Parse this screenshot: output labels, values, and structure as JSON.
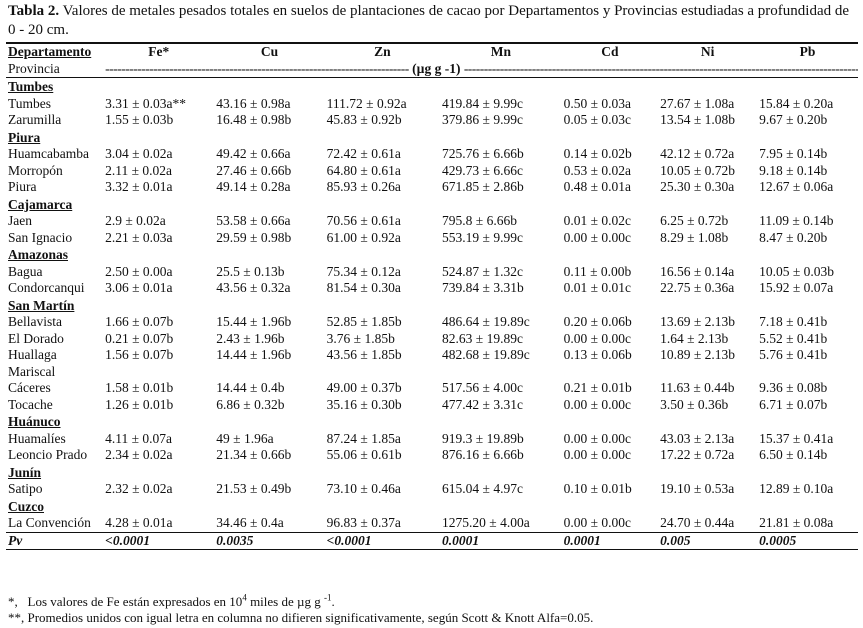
{
  "caption": {
    "label": "Tabla 2.",
    "text": "Valores de metales pesados totales en suelos de plantaciones de cacao por Departamentos y Provincias estudiadas a profundidad de 0 - 20 cm."
  },
  "header": {
    "departamento": "Departamento",
    "provincia": "Provincia",
    "columns": [
      "Fe*",
      "Cu",
      "Zn",
      "Mn",
      "Cd",
      "Ni",
      "Pb"
    ],
    "units_left": "----------------------------------------------------------------------------",
    "units": "(µg g -1)",
    "units_right": "-------------------------------------------------------------------------------------------------------------------------"
  },
  "rows": [
    {
      "dept": "Tumbes"
    },
    {
      "prov": "Tumbes",
      "v": [
        "3.31 ± 0.03a**",
        "43.16 ± 0.98a",
        "111.72 ± 0.92a",
        "419.84 ± 9.99c",
        "0.50 ± 0.03a",
        "27.67 ± 1.08a",
        "15.84 ± 0.20a"
      ]
    },
    {
      "prov": "Zarumilla",
      "v": [
        "1.55 ± 0.03b",
        "16.48 ± 0.98b",
        "45.83 ± 0.92b",
        "379.86 ± 9.99c",
        "0.05 ± 0.03c",
        "13.54 ± 1.08b",
        "9.67 ± 0.20b"
      ]
    },
    {
      "dept": "Piura"
    },
    {
      "prov": "Huamcabamba",
      "v": [
        "3.04 ± 0.02a",
        "49.42 ± 0.66a",
        "72.42 ± 0.61a",
        "725.76 ± 6.66b",
        "0.14 ± 0.02b",
        "42.12 ± 0.72a",
        "7.95 ± 0.14b"
      ]
    },
    {
      "prov": "Morropón",
      "v": [
        "2.11 ± 0.02a",
        "27.46 ± 0.66b",
        "64.80 ± 0.61a",
        "429.73 ± 6.66c",
        "0.53 ± 0.02a",
        "10.05 ± 0.72b",
        "9.18 ± 0.14b"
      ]
    },
    {
      "prov": "Piura",
      "v": [
        "3.32 ± 0.01a",
        "49.14 ± 0.28a",
        "85.93 ± 0.26a",
        "671.85 ± 2.86b",
        "0.48 ± 0.01a",
        "25.30 ± 0.30a",
        "12.67 ± 0.06a"
      ]
    },
    {
      "dept": "Cajamarca"
    },
    {
      "prov": "Jaen",
      "v": [
        "2.9 ± 0.02a",
        "53.58 ± 0.66a",
        "70.56 ± 0.61a",
        "795.8 ± 6.66b",
        "0.01 ± 0.02c",
        "6.25 ± 0.72b",
        "11.09 ± 0.14b"
      ]
    },
    {
      "prov": "San Ignacio",
      "v": [
        "2.21 ± 0.03a",
        "29.59 ± 0.98b",
        "61.00 ± 0.92a",
        "553.19 ± 9.99c",
        "0.00 ± 0.00c",
        "8.29 ± 1.08b",
        "8.47 ± 0.20b"
      ]
    },
    {
      "dept": "Amazonas"
    },
    {
      "prov": "Bagua",
      "v": [
        "2.50 ± 0.00a",
        "25.5 ± 0.13b",
        "75.34 ± 0.12a",
        "524.87 ± 1.32c",
        "0.11 ± 0.00b",
        "16.56 ± 0.14a",
        "10.05 ± 0.03b"
      ]
    },
    {
      "prov": "Condorcanqui",
      "v": [
        "3.06 ± 0.01a",
        "43.56 ± 0.32a",
        "81.54 ± 0.30a",
        "739.84 ± 3.31b",
        "0.01 ± 0.01c",
        "22.75 ± 0.36a",
        "15.92 ± 0.07a"
      ]
    },
    {
      "dept": "San Martín"
    },
    {
      "prov": "Bellavista",
      "v": [
        "1.66 ± 0.07b",
        "15.44 ± 1.96b",
        "52.85 ± 1.85b",
        "486.64 ± 19.89c",
        "0.20 ± 0.06b",
        "13.69 ± 2.13b",
        "7.18 ± 0.41b"
      ]
    },
    {
      "prov": "El Dorado",
      "v": [
        "0.21 ± 0.07b",
        "2.43 ± 1.96b",
        "3.76 ± 1.85b",
        "82.63 ± 19.89c",
        "0.00 ± 0.00c",
        "1.64 ± 2.13b",
        "5.52 ± 0.41b"
      ]
    },
    {
      "prov": "Huallaga",
      "v": [
        "1.56 ± 0.07b",
        "14.44 ± 1.96b",
        "43.56 ± 1.85b",
        "482.68 ± 19.89c",
        "0.13 ± 0.06b",
        "10.89 ± 2.13b",
        "5.76 ± 0.41b"
      ]
    },
    {
      "prov": "Mariscal",
      "v": [
        "",
        "",
        "",
        "",
        "",
        "",
        ""
      ]
    },
    {
      "prov": "Cáceres",
      "v": [
        "1.58 ± 0.01b",
        "14.44 ± 0.4b",
        "49.00 ± 0.37b",
        "517.56 ± 4.00c",
        "0.21 ± 0.01b",
        "11.63 ± 0.44b",
        "9.36 ± 0.08b"
      ]
    },
    {
      "prov": "Tocache",
      "v": [
        "1.26 ± 0.01b",
        "6.86 ± 0.32b",
        "35.16 ± 0.30b",
        "477.42 ± 3.31c",
        "0.00 ± 0.00c",
        "3.50 ± 0.36b",
        "6.71 ± 0.07b"
      ]
    },
    {
      "dept": "Huánuco"
    },
    {
      "prov": "Huamalíes",
      "v": [
        "4.11 ± 0.07a",
        "49 ± 1.96a",
        "87.24 ± 1.85a",
        "919.3 ± 19.89b",
        "0.00 ± 0.00c",
        "43.03 ± 2.13a",
        "15.37 ± 0.41a"
      ]
    },
    {
      "prov": "Leoncio Prado",
      "v": [
        "2.34 ± 0.02a",
        "21.34 ± 0.66b",
        "55.06 ± 0.61b",
        "876.16 ± 6.66b",
        "0.00 ± 0.00c",
        "17.22 ± 0.72a",
        "6.50 ± 0.14b"
      ]
    },
    {
      "dept": "Junín"
    },
    {
      "prov": "Satipo",
      "v": [
        "2.32 ± 0.02a",
        "21.53 ± 0.49b",
        "73.10 ± 0.46a",
        "615.04 ± 4.97c",
        "0.10 ± 0.01b",
        "19.10 ± 0.53a",
        "12.89 ± 0.10a"
      ]
    },
    {
      "dept": "Cuzco"
    },
    {
      "prov": "La Convención",
      "v": [
        "4.28 ± 0.01a",
        "34.46 ± 0.4a",
        "96.83 ± 0.37a",
        "1275.20 ± 4.00a",
        "0.00 ± 0.00c",
        "24.70 ± 0.44a",
        "21.81 ± 0.08a"
      ]
    }
  ],
  "pv": {
    "label": "Pv",
    "values": [
      "<0.0001",
      "0.0035",
      "<0.0001",
      "0.0001",
      "0.0001",
      "0.005",
      "0.0005"
    ]
  },
  "notes": {
    "note1_mark": "*,",
    "note1_text_a": "Los valores de Fe están expresados en 10",
    "note1_sup": "4",
    "note1_text_b": "miles de µg g",
    "note1_sup2": "-1",
    "note1_end": ".",
    "note2": "**, Promedios unidos con igual letra en columna no difieren significativamente, según Scott & Knott Alfa=0.05."
  }
}
